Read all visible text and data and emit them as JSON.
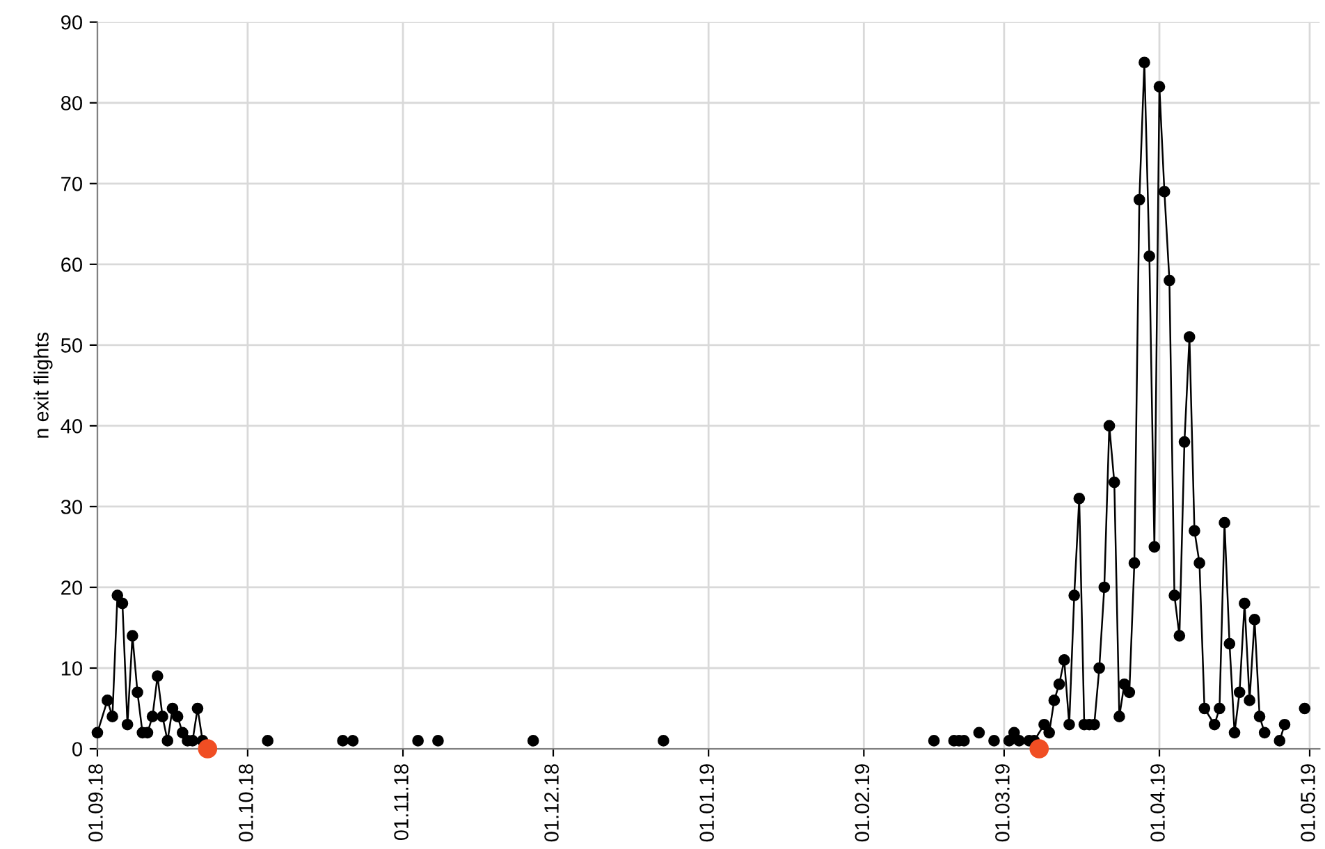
{
  "chart_data": {
    "type": "line",
    "ylabel": "n exit flights",
    "xlim": [
      "2018-09-01",
      "2019-05-03"
    ],
    "ylim": [
      0,
      90
    ],
    "yticks": [
      0,
      10,
      20,
      30,
      40,
      50,
      60,
      70,
      80,
      90
    ],
    "xticks": [
      {
        "value": "2018-09-01",
        "label": "01.09.18"
      },
      {
        "value": "2018-10-01",
        "label": "01.10.18"
      },
      {
        "value": "2018-11-01",
        "label": "01.11.18"
      },
      {
        "value": "2018-12-01",
        "label": "01.12.18"
      },
      {
        "value": "2019-01-01",
        "label": "01.01.19"
      },
      {
        "value": "2019-02-01",
        "label": "01.02.19"
      },
      {
        "value": "2019-03-01",
        "label": "01.03.19"
      },
      {
        "value": "2019-04-01",
        "label": "01.04.19"
      },
      {
        "value": "2019-05-01",
        "label": "01.05.19"
      }
    ],
    "grid": true,
    "legend": false,
    "marker": "circle",
    "line_style": "solid",
    "series": [
      {
        "color": "#000000",
        "x": [
          "2018-09-01",
          "2018-09-03",
          "2018-09-04",
          "2018-09-05",
          "2018-09-06",
          "2018-09-07",
          "2018-09-08",
          "2018-09-09",
          "2018-09-10",
          "2018-09-11",
          "2018-09-12",
          "2018-09-13",
          "2018-09-14",
          "2018-09-15",
          "2018-09-16",
          "2018-09-17",
          "2018-09-18",
          "2018-09-19",
          "2018-09-20",
          "2018-09-21",
          "2018-09-22",
          "2018-09-23",
          "2018-10-05",
          "2018-10-06",
          "2018-10-20",
          "2018-10-21",
          "2018-10-22",
          "2018-10-23",
          "2018-11-04",
          "2018-11-05",
          "2018-11-08",
          "2018-11-09",
          "2018-11-27",
          "2018-11-28",
          "2018-12-23",
          "2018-12-24",
          "2019-02-15",
          "2019-02-16",
          "2019-02-19",
          "2019-02-19T12:00",
          "2019-02-20",
          "2019-02-20T12:00",
          "2019-02-21",
          "2019-02-22",
          "2019-02-24",
          "2019-02-25",
          "2019-02-27",
          "2019-02-28",
          "2019-03-02",
          "2019-03-03",
          "2019-03-04",
          "2019-03-06",
          "2019-03-07",
          "2019-03-09",
          "2019-03-10",
          "2019-03-11",
          "2019-03-12",
          "2019-03-13",
          "2019-03-14",
          "2019-03-15",
          "2019-03-16",
          "2019-03-17",
          "2019-03-18",
          "2019-03-19",
          "2019-03-20",
          "2019-03-21",
          "2019-03-22",
          "2019-03-23",
          "2019-03-24",
          "2019-03-25",
          "2019-03-26",
          "2019-03-27",
          "2019-03-28",
          "2019-03-29",
          "2019-03-30",
          "2019-03-31",
          "2019-04-01",
          "2019-04-02",
          "2019-04-03",
          "2019-04-04",
          "2019-04-05",
          "2019-04-06",
          "2019-04-07",
          "2019-04-08",
          "2019-04-09",
          "2019-04-10",
          "2019-04-12",
          "2019-04-13",
          "2019-04-14",
          "2019-04-15",
          "2019-04-16",
          "2019-04-17",
          "2019-04-18",
          "2019-04-19",
          "2019-04-20",
          "2019-04-21",
          "2019-04-22",
          "2019-04-23",
          "2019-04-25",
          "2019-04-26",
          "2019-04-27",
          "2019-04-30"
        ],
        "values": [
          2,
          6,
          4,
          19,
          18,
          3,
          14,
          7,
          2,
          2,
          4,
          9,
          4,
          1,
          5,
          4,
          2,
          1,
          1,
          5,
          1,
          null,
          1,
          null,
          1,
          null,
          1,
          null,
          1,
          null,
          1,
          null,
          1,
          null,
          1,
          null,
          1,
          null,
          1,
          null,
          1,
          null,
          1,
          null,
          2,
          null,
          1,
          null,
          1,
          2,
          1,
          1,
          1,
          3,
          2,
          6,
          8,
          11,
          3,
          19,
          31,
          3,
          3,
          3,
          10,
          20,
          40,
          33,
          4,
          8,
          7,
          23,
          68,
          85,
          61,
          25,
          82,
          69,
          58,
          19,
          14,
          38,
          51,
          27,
          23,
          5,
          3,
          5,
          28,
          13,
          2,
          7,
          18,
          6,
          16,
          4,
          2,
          null,
          1,
          3,
          null,
          5
        ]
      },
      {
        "type": "scatter",
        "color": "#f04e23",
        "x": [
          "2018-09-23",
          "2019-03-08"
        ],
        "values": [
          0,
          0
        ]
      }
    ]
  }
}
